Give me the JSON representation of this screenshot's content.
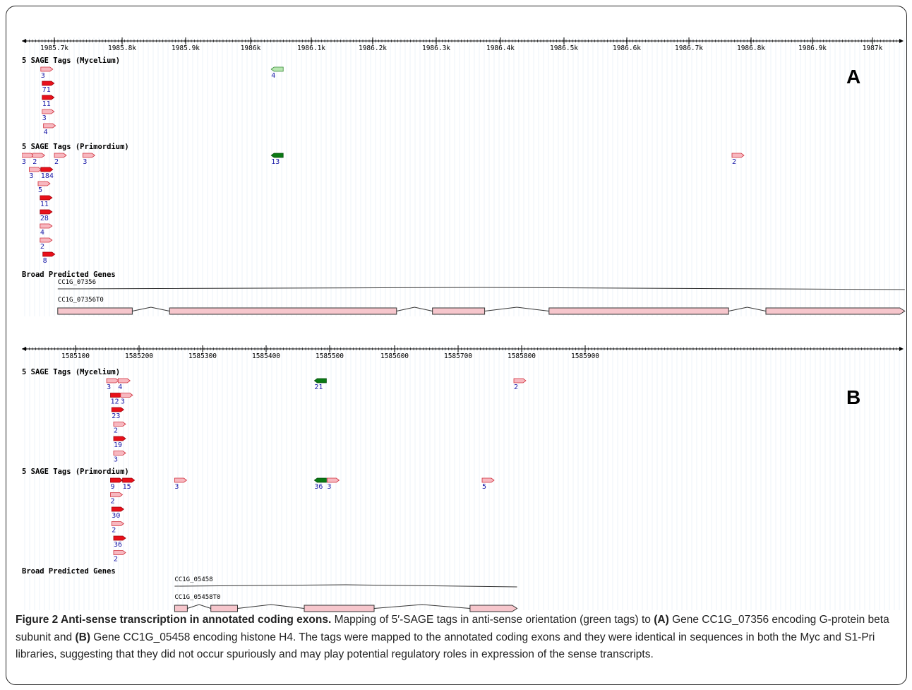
{
  "figure": {
    "panels": [
      {
        "id": "panelA",
        "letter": "A",
        "axis": {
          "ticks": [
            "1985.7k",
            "1985.8k",
            "1985.9k",
            "1986k",
            "1986.1k",
            "1986.2k",
            "1986.3k",
            "1986.4k",
            "1986.5k",
            "1986.6k",
            "1986.7k",
            "1986.8k",
            "1986.9k",
            "1987k"
          ]
        },
        "tracks": [
          {
            "label": "5 SAGE Tags (Mycelium)",
            "tags": [
              {
                "pos": 1985.68,
                "count": "3",
                "strand": "+",
                "dark": false
              },
              {
                "pos": 1986.02,
                "count": "4",
                "strand": "-",
                "dark": false
              },
              {
                "pos": 1985.682,
                "count": "71",
                "strand": "+",
                "dark": true
              },
              {
                "pos": 1985.682,
                "count": "11",
                "strand": "+",
                "dark": true
              },
              {
                "pos": 1985.682,
                "count": "3",
                "strand": "+",
                "dark": false
              },
              {
                "pos": 1985.684,
                "count": "4",
                "strand": "+",
                "dark": false
              }
            ]
          },
          {
            "label": "5 SAGE Tags (Primordium)",
            "tags": [
              {
                "pos": 1985.652,
                "count": "3",
                "strand": "+",
                "dark": false
              },
              {
                "pos": 1985.668,
                "count": "2",
                "strand": "+",
                "dark": false
              },
              {
                "pos": 1985.7,
                "count": "2",
                "strand": "+",
                "dark": false
              },
              {
                "pos": 1985.742,
                "count": "3",
                "strand": "+",
                "dark": false
              },
              {
                "pos": 1986.02,
                "count": "13",
                "strand": "-",
                "dark": true
              },
              {
                "pos": 1986.7,
                "count": "2",
                "strand": "+",
                "dark": false
              },
              {
                "pos": 1985.663,
                "count": "3",
                "strand": "+",
                "dark": false
              },
              {
                "pos": 1985.68,
                "count": "184",
                "strand": "+",
                "dark": true
              },
              {
                "pos": 1985.676,
                "count": "5",
                "strand": "+",
                "dark": false
              },
              {
                "pos": 1985.679,
                "count": "11",
                "strand": "+",
                "dark": true
              },
              {
                "pos": 1985.679,
                "count": "28",
                "strand": "+",
                "dark": true
              },
              {
                "pos": 1985.679,
                "count": "4",
                "strand": "+",
                "dark": false
              },
              {
                "pos": 1985.679,
                "count": "2",
                "strand": "+",
                "dark": false
              },
              {
                "pos": 1985.683,
                "count": "8",
                "strand": "+",
                "dark": true
              }
            ]
          }
        ],
        "genes": {
          "label": "Broad Predicted Genes",
          "gene_name": "CC1G_07356",
          "transcript_name": "CC1G_07356T0",
          "gene_span": [
            1985.705,
            1986.955
          ],
          "exons": [
            [
              1985.705,
              1985.815
            ],
            [
              1985.87,
              1986.205
            ],
            [
              1986.258,
              1986.335
            ],
            [
              1986.43,
              1986.695
            ],
            [
              1986.75,
              1986.955
            ]
          ]
        }
      },
      {
        "id": "panelB",
        "letter": "B",
        "axis": {
          "ticks": [
            "1585100",
            "1585200",
            "1585300",
            "1585400",
            "1585500",
            "1585600",
            "1585700",
            "1585800",
            "1585900"
          ]
        },
        "tracks": [
          {
            "label": "5 SAGE Tags (Mycelium)",
            "tags": [
              {
                "pos": 1585149,
                "count": "3",
                "strand": "+",
                "dark": false
              },
              {
                "pos": 1585167,
                "count": "4",
                "strand": "+",
                "dark": false
              },
              {
                "pos": 1585476,
                "count": "21",
                "strand": "-",
                "dark": true
              },
              {
                "pos": 1585790,
                "count": "2",
                "strand": "+",
                "dark": false
              },
              {
                "pos": 1585155,
                "count": "12",
                "strand": "+",
                "dark": true
              },
              {
                "pos": 1585171,
                "count": "3",
                "strand": "+",
                "dark": false
              },
              {
                "pos": 1585157,
                "count": "23",
                "strand": "+",
                "dark": true
              },
              {
                "pos": 1585160,
                "count": "2",
                "strand": "+",
                "dark": false
              },
              {
                "pos": 1585160,
                "count": "19",
                "strand": "+",
                "dark": true
              },
              {
                "pos": 1585160,
                "count": "3",
                "strand": "+",
                "dark": false
              }
            ]
          },
          {
            "label": "5 SAGE Tags (Primordium)",
            "tags": [
              {
                "pos": 1585155,
                "count": "9",
                "strand": "+",
                "dark": true
              },
              {
                "pos": 1585174,
                "count": "15",
                "strand": "+",
                "dark": true
              },
              {
                "pos": 1585256,
                "count": "3",
                "strand": "+",
                "dark": false
              },
              {
                "pos": 1585476,
                "count": "36",
                "strand": "-",
                "dark": true
              },
              {
                "pos": 1585496,
                "count": "3",
                "strand": "+",
                "dark": false
              },
              {
                "pos": 1585740,
                "count": "5",
                "strand": "+",
                "dark": false
              },
              {
                "pos": 1585155,
                "count": "2",
                "strand": "+",
                "dark": false
              },
              {
                "pos": 1585157,
                "count": "30",
                "strand": "+",
                "dark": true
              },
              {
                "pos": 1585157,
                "count": "2",
                "strand": "+",
                "dark": false
              },
              {
                "pos": 1585160,
                "count": "36",
                "strand": "+",
                "dark": true
              },
              {
                "pos": 1585160,
                "count": "2",
                "strand": "+",
                "dark": false
              }
            ]
          }
        ],
        "genes": {
          "label": "Broad Predicted Genes",
          "gene_name": "CC1G_05458",
          "transcript_name": "CC1G_05458T0",
          "gene_span": [
            1585256,
            1585795
          ],
          "exons": [
            [
              1585256,
              1585276
            ],
            [
              1585313,
              1585355
            ],
            [
              1585460,
              1585570
            ],
            [
              1585721,
              1585795
            ]
          ]
        }
      }
    ]
  },
  "caption": {
    "title": "Figure 2 Anti-sense transcription in annotated coding exons.",
    "part1": " Mapping of 5′-SAGE tags in anti-sense orientation (green tags) to ",
    "refA": "(A)",
    "part2": " Gene CC1G_07356 encoding G-protein beta subunit and ",
    "refB": "(B)",
    "part3": " Gene CC1G_05458 encoding histone H4. The tags were mapped to the annotated coding exons and they were identical in sequences in both the Myc and S1-Pri libraries, suggesting that they did not occur spuriously and may play potential regulatory roles in expression of the sense transcripts."
  },
  "colors": {
    "tag_dark_red": "#e8101a",
    "tag_light_red": "#f7b8c0",
    "tag_dark_green": "#0a7a14",
    "tag_light_green": "#b7e6b0",
    "exon_fill": "#f6c6cc",
    "count_text": "#1a1aa8"
  }
}
